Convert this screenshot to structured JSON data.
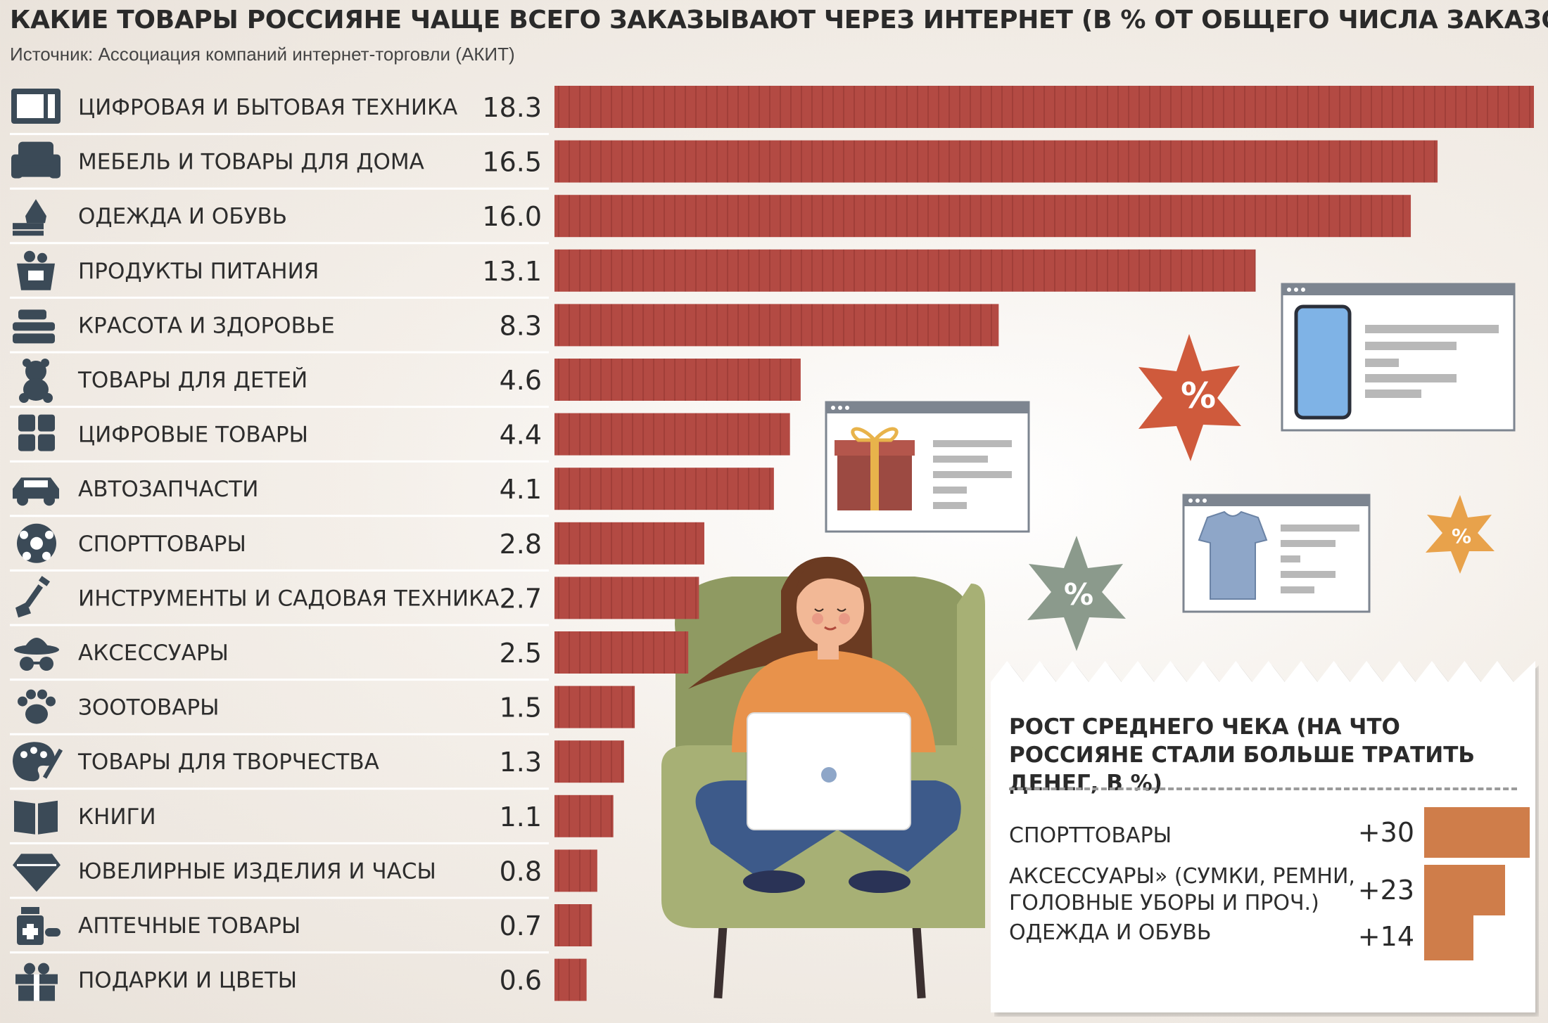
{
  "title": "КАКИЕ ТОВАРЫ РОССИЯНЕ ЧАЩЕ ВСЕГО ЗАКАЗЫВАЮТ ЧЕРЕЗ ИНТЕРНЕТ (В % ОТ ОБЩЕГО ЧИСЛА ЗАКАЗОВ)",
  "source": "Источник: Ассоциация компаний интернет-торговли (АКИТ)",
  "colors": {
    "bar": "#b34a43",
    "growth_bar": "#cf7d4a",
    "icon": "#3b4a57",
    "sale_red": "#cf5a3c",
    "sale_gray": "#8b9a8c",
    "sale_orange": "#e8a24b"
  },
  "chart_data": [
    {
      "type": "bar",
      "orientation": "horizontal",
      "title": "КАКИЕ ТОВАРЫ РОССИЯНЕ ЧАЩЕ ВСЕГО ЗАКАЗЫВАЮТ ЧЕРЕЗ ИНТЕРНЕТ (В % ОТ ОБЩЕГО ЧИСЛА ЗАКАЗОВ)",
      "categories": [
        "ЦИФРОВАЯ И БЫТОВАЯ ТЕХНИКА",
        "МЕБЕЛЬ И ТОВАРЫ ДЛЯ ДОМА",
        "ОДЕЖДА И ОБУВЬ",
        "ПРОДУКТЫ ПИТАНИЯ",
        "КРАСОТА И ЗДОРОВЬЕ",
        "ТОВАРЫ ДЛЯ ДЕТЕЙ",
        "ЦИФРОВЫЕ ТОВАРЫ",
        "АВТОЗАПЧАСТИ",
        "СПОРТТОВАРЫ",
        "ИНСТРУМЕНТЫ И САДОВАЯ ТЕХНИКА",
        "АКСЕССУАРЫ",
        "ЗООТОВАРЫ",
        "ТОВАРЫ ДЛЯ ТВОРЧЕСТВА",
        "КНИГИ",
        "ЮВЕЛИРНЫЕ ИЗДЕЛИЯ И ЧАСЫ",
        "АПТЕЧНЫЕ ТОВАРЫ",
        "ПОДАРКИ И ЦВЕТЫ"
      ],
      "values": [
        18.3,
        16.5,
        16.0,
        13.1,
        8.3,
        4.6,
        4.4,
        4.1,
        2.8,
        2.7,
        2.5,
        1.5,
        1.3,
        1.1,
        0.8,
        0.7,
        0.6
      ],
      "value_labels": [
        "18.3",
        "16.5",
        "16.0",
        "13.1",
        "8.3",
        "4.6",
        "4.4",
        "4.1",
        "2.8",
        "2.7",
        "2.5",
        "1.5",
        "1.3",
        "1.1",
        "0.8",
        "0.7",
        "0.6"
      ],
      "icons": [
        "microwave-icon",
        "armchair-icon",
        "clothes-icon",
        "grocery-basket-icon",
        "cosmetics-icon",
        "teddy-bear-icon",
        "app-grid-icon",
        "car-icon",
        "soccer-ball-icon",
        "shovel-icon",
        "hat-glasses-icon",
        "paw-icon",
        "palette-icon",
        "book-icon",
        "diamond-icon",
        "medicine-icon",
        "gift-icon"
      ],
      "xlim": [
        0,
        18.3
      ]
    },
    {
      "type": "bar",
      "orientation": "horizontal",
      "title": "РОСТ СРЕДНЕГО ЧЕКА (НА ЧТО РОССИЯНЕ СТАЛИ БОЛЬШЕ ТРАТИТЬ ДЕНЕГ, В %)",
      "categories": [
        "СПОРТТОВАРЫ",
        "АКСЕССУАРЫ» (СУМКИ, РЕМНИ, ГОЛОВНЫЕ УБОРЫ И ПРОЧ.)",
        "ОДЕЖДА И ОБУВЬ"
      ],
      "values": [
        30,
        23,
        14
      ],
      "value_labels": [
        "+30",
        "+23",
        "+14"
      ],
      "xlim": [
        0,
        30
      ]
    }
  ],
  "decor": {
    "sale_badge": "%",
    "illustration": "woman-with-laptop-in-armchair"
  }
}
